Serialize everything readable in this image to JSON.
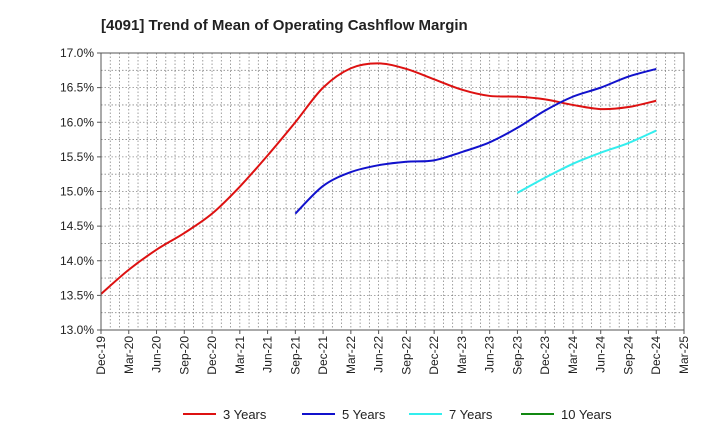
{
  "chart_data": {
    "type": "line",
    "title": "[4091]  Trend of Mean of Operating Cashflow Margin",
    "xlabel": "",
    "ylabel": "",
    "ylim": [
      13.0,
      17.0
    ],
    "y_ticks": [
      "13.0%",
      "13.5%",
      "14.0%",
      "14.5%",
      "15.0%",
      "15.5%",
      "16.0%",
      "16.5%",
      "17.0%"
    ],
    "x_ticks": [
      "Dec-19",
      "Mar-20",
      "Jun-20",
      "Sep-20",
      "Dec-20",
      "Mar-21",
      "Jun-21",
      "Sep-21",
      "Dec-21",
      "Mar-22",
      "Jun-22",
      "Sep-22",
      "Dec-22",
      "Mar-23",
      "Jun-23",
      "Sep-23",
      "Dec-23",
      "Mar-24",
      "Jun-24",
      "Sep-24",
      "Dec-24",
      "Mar-25"
    ],
    "grid": true,
    "legend_position": "bottom",
    "series": [
      {
        "name": "3 Years",
        "color": "#dd1111",
        "values": [
          13.52,
          13.87,
          14.16,
          14.4,
          14.68,
          15.07,
          15.52,
          16.0,
          16.5,
          16.78,
          16.85,
          16.77,
          16.62,
          16.47,
          16.38,
          16.37,
          16.33,
          16.25,
          16.19,
          16.22,
          16.31,
          null
        ]
      },
      {
        "name": "5 Years",
        "color": "#1111cc",
        "values": [
          null,
          null,
          null,
          null,
          null,
          null,
          null,
          14.68,
          15.08,
          15.28,
          15.38,
          15.43,
          15.45,
          15.57,
          15.71,
          15.92,
          16.17,
          16.37,
          16.5,
          16.66,
          16.77,
          null
        ]
      },
      {
        "name": "7 Years",
        "color": "#33eeee",
        "values": [
          null,
          null,
          null,
          null,
          null,
          null,
          null,
          null,
          null,
          null,
          null,
          null,
          null,
          null,
          null,
          14.98,
          15.2,
          15.4,
          15.56,
          15.7,
          15.88,
          null
        ]
      },
      {
        "name": "10 Years",
        "color": "#118811",
        "values": [
          null,
          null,
          null,
          null,
          null,
          null,
          null,
          null,
          null,
          null,
          null,
          null,
          null,
          null,
          null,
          null,
          null,
          null,
          null,
          null,
          null,
          null
        ]
      }
    ]
  }
}
